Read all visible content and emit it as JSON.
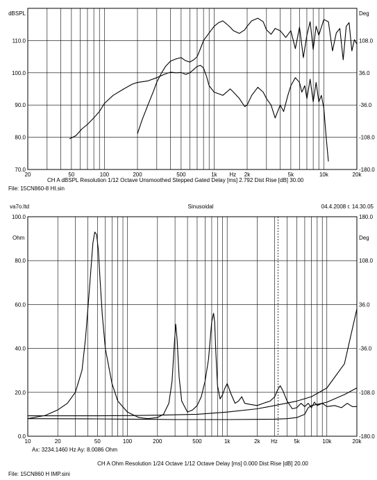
{
  "chart_data": [
    {
      "type": "line",
      "y_left_unit": "dBSPL",
      "y_right_unit": "Deg",
      "x_unit": "Hz",
      "x_scale": "log",
      "xlim": [
        20,
        20000
      ],
      "ylim_left": [
        70,
        120
      ],
      "ylim_right": [
        -180,
        180
      ],
      "grid": true,
      "y_left_ticks": [
        "70.0",
        "80.0",
        "90.0",
        "100.0",
        "110.0"
      ],
      "y_right_ticks": [
        "-180.0",
        "-108.0",
        "-36.0",
        "36.0",
        "108.0"
      ],
      "x_ticks": [
        "20",
        "50",
        "100",
        "200",
        "500",
        "1k",
        "2k",
        "Hz",
        "5k",
        "10k",
        "20k"
      ],
      "footer": "CH A   dBSPL   Resolution 1/12 Octave   Unsmoothed   Stepped   Gated   Delay [ms] 2.792   Dist Rise [dB] 30.00",
      "file": "File: 15CN860-8 HI.sin",
      "series": [
        {
          "axis": "left",
          "x": [
            48,
            55,
            62,
            70,
            80,
            90,
            100,
            120,
            150,
            180,
            200,
            250,
            300,
            350,
            400,
            450,
            500,
            550,
            600,
            650,
            700,
            750,
            800,
            850,
            900,
            1000,
            1100,
            1200,
            1300,
            1400,
            1500,
            1700,
            1900,
            2000,
            2200,
            2500,
            2800,
            3000,
            3300,
            3600,
            4000,
            4300,
            4700,
            5000,
            5500,
            6000,
            6300,
            6700,
            7000,
            7500,
            8000,
            8500,
            9000,
            9500,
            10000,
            10500,
            11000
          ],
          "y": [
            79.5,
            80.5,
            82.5,
            84,
            86,
            88,
            90.5,
            93,
            95,
            96.5,
            97,
            97.5,
            98.5,
            99.5,
            100.2,
            100,
            100.1,
            99.5,
            100,
            101,
            102,
            102.3,
            101.5,
            99,
            96,
            94,
            93.5,
            93,
            94,
            95,
            94,
            92,
            89.5,
            90,
            93,
            95.5,
            94,
            92,
            90,
            86,
            90,
            88,
            93,
            96,
            98.5,
            97,
            94,
            96,
            92,
            98,
            91,
            97,
            91,
            93,
            89,
            80,
            72.5
          ]
        },
        {
          "axis": "right",
          "x": [
            200,
            220,
            250,
            280,
            300,
            330,
            360,
            400,
            450,
            500,
            550,
            600,
            650,
            700,
            750,
            800,
            900,
            1000,
            1100,
            1200,
            1300,
            1400,
            1500,
            1700,
            1900,
            2000,
            2200,
            2500,
            2800,
            3000,
            3300,
            3600,
            4000,
            4500,
            5000,
            5500,
            6000,
            6500,
            7000,
            7500,
            8000,
            8500,
            9000,
            10000,
            11000,
            12000,
            13000,
            14000,
            15000,
            16000,
            17000,
            18000,
            19000,
            20000
          ],
          "y": [
            -100,
            -70,
            -35,
            -5,
            15,
            35,
            50,
            62,
            67,
            70,
            63,
            60,
            65,
            72,
            90,
            108,
            125,
            140,
            148,
            152,
            145,
            138,
            130,
            124,
            132,
            140,
            152,
            158,
            150,
            132,
            122,
            135,
            130,
            115,
            130,
            90,
            138,
            70,
            120,
            150,
            88,
            140,
            120,
            155,
            150,
            85,
            125,
            135,
            65,
            140,
            148,
            85,
            110,
            100
          ]
        }
      ]
    },
    {
      "type": "line",
      "company": "va7o.ltd",
      "title": "Sinusoidal",
      "datetime": "04.4.2008 г. 14.30.05",
      "y_left_unit": "Ohm",
      "y_right_unit": "Deg",
      "x_unit": "Hz",
      "x_scale": "log",
      "xlim": [
        10,
        20000
      ],
      "ylim_left": [
        0,
        100
      ],
      "ylim_right": [
        -180,
        180
      ],
      "grid": true,
      "y_left_ticks": [
        "0.0",
        "20.0",
        "40.0",
        "60.0",
        "80.0",
        "100.0"
      ],
      "y_right_ticks": [
        "-180.0",
        "-108.0",
        "-36.0",
        "36.0",
        "108.0",
        "180.0"
      ],
      "x_ticks": [
        "10",
        "20",
        "50",
        "100",
        "200",
        "500",
        "1k",
        "2k",
        "Hz",
        "5k",
        "10k",
        "20k"
      ],
      "cursor_x": 3234.146,
      "cursor_readout": "Ax: 3234.1460 Hz   Ay: 8.0086 Ohm",
      "footer": "CH A   Ohm   Resolution 1/24 Octave   1/12 Octave   Delay [ms] 0.000   Dist Rise [dB] 20.00",
      "file": "File: 15CN860 H IMP.sini",
      "series": [
        {
          "axis": "left",
          "x": [
            10,
            15,
            20,
            25,
            30,
            35,
            38,
            42,
            45,
            47,
            49,
            51,
            53,
            56,
            60,
            70,
            80,
            100,
            130,
            160,
            200,
            230,
            260,
            280,
            295,
            305,
            315,
            330,
            350,
            400,
            450,
            500,
            550,
            600,
            650,
            700,
            730,
            750,
            770,
            800,
            850,
            900,
            950,
            1000,
            1100,
            1200,
            1300,
            1400,
            1500,
            1700,
            2000,
            2300,
            2700,
            3000,
            3200,
            3400,
            3600,
            4000,
            4500,
            5000,
            5500,
            6000,
            6500,
            7000,
            7500,
            8000,
            9000,
            10000,
            12000,
            14000,
            16000,
            18000,
            20000
          ],
          "y": [
            8,
            9.5,
            12,
            15,
            20,
            30,
            45,
            70,
            88,
            93,
            92,
            85,
            72,
            55,
            40,
            24,
            16,
            11,
            8.5,
            8,
            8.5,
            10,
            15,
            25,
            42,
            51,
            44,
            27,
            16,
            11,
            12,
            14,
            18,
            25,
            35,
            52,
            56,
            52,
            38,
            23,
            17,
            19,
            22,
            24,
            19,
            15,
            16,
            18,
            15,
            14.5,
            14,
            15,
            16,
            18,
            21,
            23,
            21,
            16,
            12.5,
            13,
            15,
            13.5,
            15,
            13,
            15.5,
            14,
            15,
            13.5,
            14,
            13,
            15,
            13.5,
            13.5
          ]
        },
        {
          "axis": "left",
          "x": [
            10,
            50,
            100,
            200,
            500,
            1000,
            2000,
            3000,
            5000,
            7000,
            10000,
            15000,
            20000
          ],
          "y": [
            9.3,
            9.3,
            9.4,
            9.6,
            10,
            11,
            12.5,
            14,
            16,
            18,
            22,
            33,
            58
          ]
        },
        {
          "axis": "left",
          "x": [
            10,
            50,
            100,
            200,
            300,
            500,
            1000,
            2000,
            3000,
            4000,
            5000,
            6000,
            6500,
            7000,
            8000,
            10000,
            15000,
            20000
          ],
          "y": [
            8,
            7.9,
            7.8,
            7.7,
            7.6,
            7.6,
            7.6,
            7.7,
            7.8,
            8,
            8.5,
            10,
            13,
            14,
            14.5,
            15.5,
            19,
            22
          ]
        }
      ]
    }
  ]
}
